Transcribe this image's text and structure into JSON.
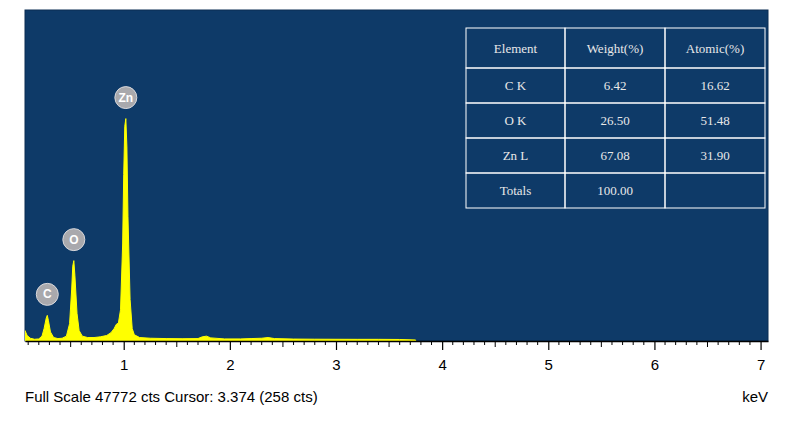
{
  "chart_data": {
    "type": "area",
    "color": "#ffff00",
    "xlabel": "keV",
    "status": "Full Scale 47772 cts Cursor: 3.374  (258 cts)",
    "tick_labels": "x",
    "xlim": [
      0.07,
      7.07
    ],
    "ylim": [
      0,
      47772
    ],
    "xticks": [
      1,
      2,
      3,
      4,
      5,
      6,
      7
    ],
    "xticks_minor": [
      0.1,
      0.2,
      0.3,
      0.4,
      0.5,
      0.6,
      0.7,
      0.8,
      0.9,
      1.1,
      1.2,
      1.3,
      1.4,
      1.5,
      1.6,
      1.7,
      1.8,
      1.9,
      2.1,
      2.2,
      2.3,
      2.4,
      2.5,
      2.6,
      2.7,
      2.8,
      2.9,
      3.1,
      3.2,
      3.3,
      3.4,
      3.5,
      3.6,
      3.7,
      3.8,
      3.9,
      4.1,
      4.2,
      4.3,
      4.4,
      4.5,
      4.6,
      4.7,
      4.8,
      4.9,
      5.1,
      5.2,
      5.3,
      5.4,
      5.5,
      5.6,
      5.7,
      5.8,
      5.9,
      6.1,
      6.2,
      6.3,
      6.4,
      6.5,
      6.6,
      6.7,
      6.8,
      6.9
    ],
    "x": [
      0.07,
      0.09,
      0.12,
      0.16,
      0.2,
      0.23,
      0.25,
      0.27,
      0.28,
      0.29,
      0.31,
      0.34,
      0.38,
      0.42,
      0.46,
      0.49,
      0.51,
      0.52,
      0.53,
      0.54,
      0.56,
      0.58,
      0.61,
      0.66,
      0.72,
      0.78,
      0.84,
      0.88,
      0.91,
      0.93,
      0.95,
      0.97,
      0.99,
      1.0,
      1.01,
      1.02,
      1.03,
      1.04,
      1.06,
      1.08,
      1.1,
      1.15,
      1.25,
      1.4,
      1.55,
      1.7,
      1.74,
      1.78,
      1.82,
      1.95,
      2.1,
      2.2,
      2.3,
      2.36,
      2.42,
      2.6,
      2.8,
      3.0,
      3.2,
      3.4,
      3.6,
      3.75
    ],
    "values": [
      1500,
      800,
      400,
      250,
      300,
      700,
      1800,
      3300,
      3700,
      3000,
      1300,
      500,
      350,
      400,
      700,
      2500,
      7500,
      10800,
      11600,
      9500,
      4000,
      1500,
      700,
      500,
      500,
      600,
      800,
      1200,
      1800,
      2400,
      2600,
      4500,
      14000,
      24000,
      31000,
      32100,
      28000,
      18000,
      6000,
      1800,
      900,
      500,
      400,
      350,
      330,
      350,
      600,
      700,
      450,
      300,
      300,
      350,
      400,
      500,
      350,
      280,
      260,
      250,
      240,
      240,
      220,
      150
    ],
    "annotations": [
      {
        "text": "C",
        "x": 0.28
      },
      {
        "text": "O",
        "x": 0.53
      },
      {
        "text": "Zn",
        "x": 1.02
      }
    ],
    "table": {
      "columns": [
        "Element",
        "Weight(%)",
        "Atomic(%)"
      ],
      "rows": [
        [
          "C K",
          "6.42",
          "16.62"
        ],
        [
          "O K",
          "26.50",
          "51.48"
        ],
        [
          "Zn L",
          "67.08",
          "31.90"
        ],
        [
          "Totals",
          "100.00",
          null
        ]
      ]
    }
  }
}
